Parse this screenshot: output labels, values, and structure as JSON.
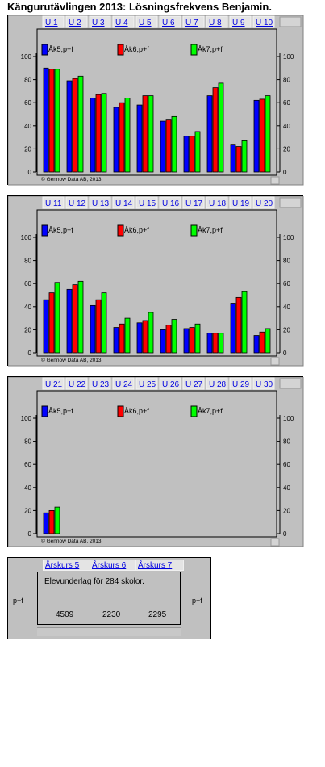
{
  "page": {
    "title": "Kängurutävlingen 2013: Lösningsfrekvens Benjamin."
  },
  "colors": {
    "panel": "#c0c0c0",
    "plot_bg": "#c0c0c0",
    "tab_text": "#0000e0",
    "series": [
      "#0000ff",
      "#ff0000",
      "#00ff00"
    ]
  },
  "chart_data": [
    {
      "type": "bar",
      "categories": [
        "U 1",
        "U 2",
        "U 3",
        "U 4",
        "U 5",
        "U 6",
        "U 7",
        "U 8",
        "U 9",
        "U 10"
      ],
      "series": [
        {
          "name": "Åk5,p+f",
          "values": [
            90,
            79,
            64,
            56,
            58,
            44,
            31,
            66,
            24,
            62
          ]
        },
        {
          "name": "Åk6,p+f",
          "values": [
            89,
            81,
            67,
            60,
            66,
            45,
            31,
            73,
            22,
            63
          ]
        },
        {
          "name": "Åk7,p+f",
          "values": [
            89,
            83,
            68,
            64,
            66,
            48,
            35,
            77,
            27,
            66
          ]
        }
      ],
      "ylim": [
        0,
        100
      ],
      "yticks": [
        0,
        20,
        40,
        60,
        80,
        100
      ],
      "legend": "top",
      "copyright": "© Gennow Data AB, 2013."
    },
    {
      "type": "bar",
      "categories": [
        "U 11",
        "U 12",
        "U 13",
        "U 14",
        "U 15",
        "U 16",
        "U 17",
        "U 18",
        "U 19",
        "U 20"
      ],
      "series": [
        {
          "name": "Åk5,p+f",
          "values": [
            46,
            55,
            41,
            22,
            26,
            20,
            21,
            17,
            43,
            15
          ]
        },
        {
          "name": "Åk6,p+f",
          "values": [
            52,
            59,
            46,
            25,
            28,
            24,
            22,
            17,
            48,
            18
          ]
        },
        {
          "name": "Åk7,p+f",
          "values": [
            61,
            62,
            52,
            30,
            35,
            29,
            25,
            17,
            53,
            21
          ]
        }
      ],
      "ylim": [
        0,
        100
      ],
      "yticks": [
        0,
        20,
        40,
        60,
        80,
        100
      ],
      "legend": "top",
      "copyright": "© Gennow Data AB, 2013."
    },
    {
      "type": "bar",
      "categories": [
        "U 21",
        "U 22",
        "U 23",
        "U 24",
        "U 25",
        "U 26",
        "U 27",
        "U 28",
        "U 29",
        "U 30"
      ],
      "series": [
        {
          "name": "Åk5,p+f",
          "values": [
            18,
            null,
            null,
            null,
            null,
            null,
            null,
            null,
            null,
            null
          ]
        },
        {
          "name": "Åk6,p+f",
          "values": [
            20,
            null,
            null,
            null,
            null,
            null,
            null,
            null,
            null,
            null
          ]
        },
        {
          "name": "Åk7,p+f",
          "values": [
            23,
            null,
            null,
            null,
            null,
            null,
            null,
            null,
            null,
            null
          ]
        }
      ],
      "ylim": [
        0,
        100
      ],
      "yticks": [
        0,
        20,
        40,
        60,
        80,
        100
      ],
      "legend": "top",
      "copyright": "© Gennow Data AB, 2013."
    }
  ],
  "summary": {
    "tabs": [
      "Årskurs 5",
      "Årskurs 6",
      "Årskurs 7"
    ],
    "left_label": "p+f",
    "right_label": "p+f",
    "note": "Elevunderlag för 284 skolor.",
    "counts": [
      "4509",
      "2230",
      "2295"
    ]
  }
}
